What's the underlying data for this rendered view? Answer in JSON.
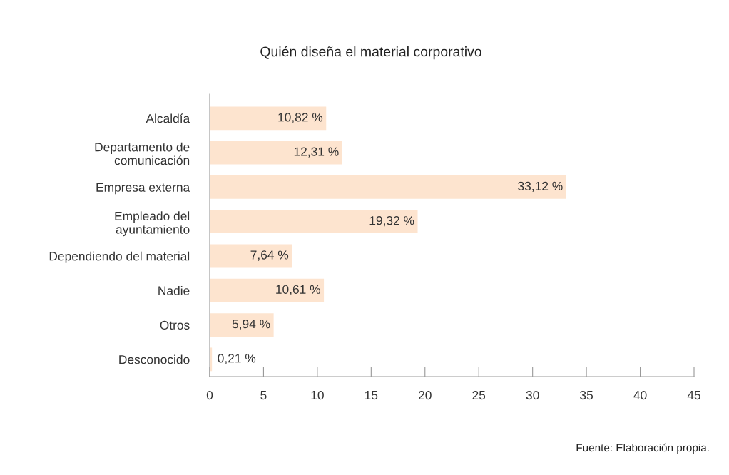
{
  "chart_data": {
    "type": "bar",
    "orientation": "horizontal",
    "title": "Quién diseña el material corporativo",
    "categories": [
      "Alcaldía",
      "Departamento de\ncomunicación",
      "Empresa externa",
      "Empleado del\nayuntamiento",
      "Dependiendo del material",
      "Nadie",
      "Otros",
      "Desconocido"
    ],
    "values": [
      10.82,
      12.31,
      33.12,
      19.32,
      7.64,
      10.61,
      5.94,
      0.21
    ],
    "value_labels": [
      "10,82 %",
      "12,31 %",
      "33,12 %",
      "19,32 %",
      "7,64 %",
      "10,61 %",
      "5,94 %",
      "0,21 %"
    ],
    "color": "#fde4cf",
    "xlim": [
      0,
      45
    ],
    "xticks": [
      0,
      5,
      10,
      15,
      20,
      25,
      30,
      35,
      40,
      45
    ],
    "grid": false,
    "legend": false,
    "annotations": [
      "Fuente: Elaboración propia."
    ]
  }
}
